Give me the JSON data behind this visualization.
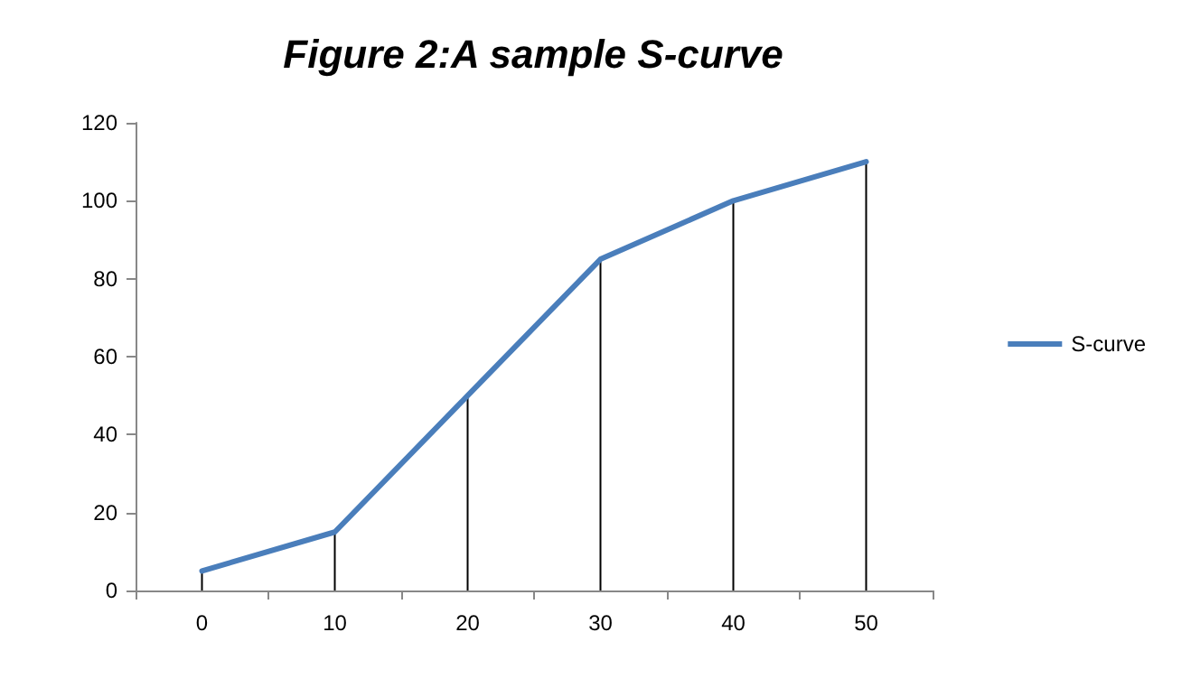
{
  "chart_data": {
    "type": "line",
    "title": "Figure 2:A sample S-curve",
    "categories": [
      "0",
      "10",
      "20",
      "30",
      "40",
      "50"
    ],
    "series": [
      {
        "type": "bar",
        "color": "#000000",
        "values": [
          5,
          15,
          50,
          85,
          100,
          110
        ]
      },
      {
        "name": "S-curve",
        "color": "#4a7ebb",
        "values": [
          5,
          15,
          50,
          85,
          100,
          110
        ]
      }
    ],
    "ylim": [
      0,
      120
    ],
    "yticks": [
      0,
      20,
      40,
      60,
      80,
      100,
      120
    ],
    "grid": false,
    "legend": "right",
    "marker": "none",
    "line_style": "solid"
  }
}
